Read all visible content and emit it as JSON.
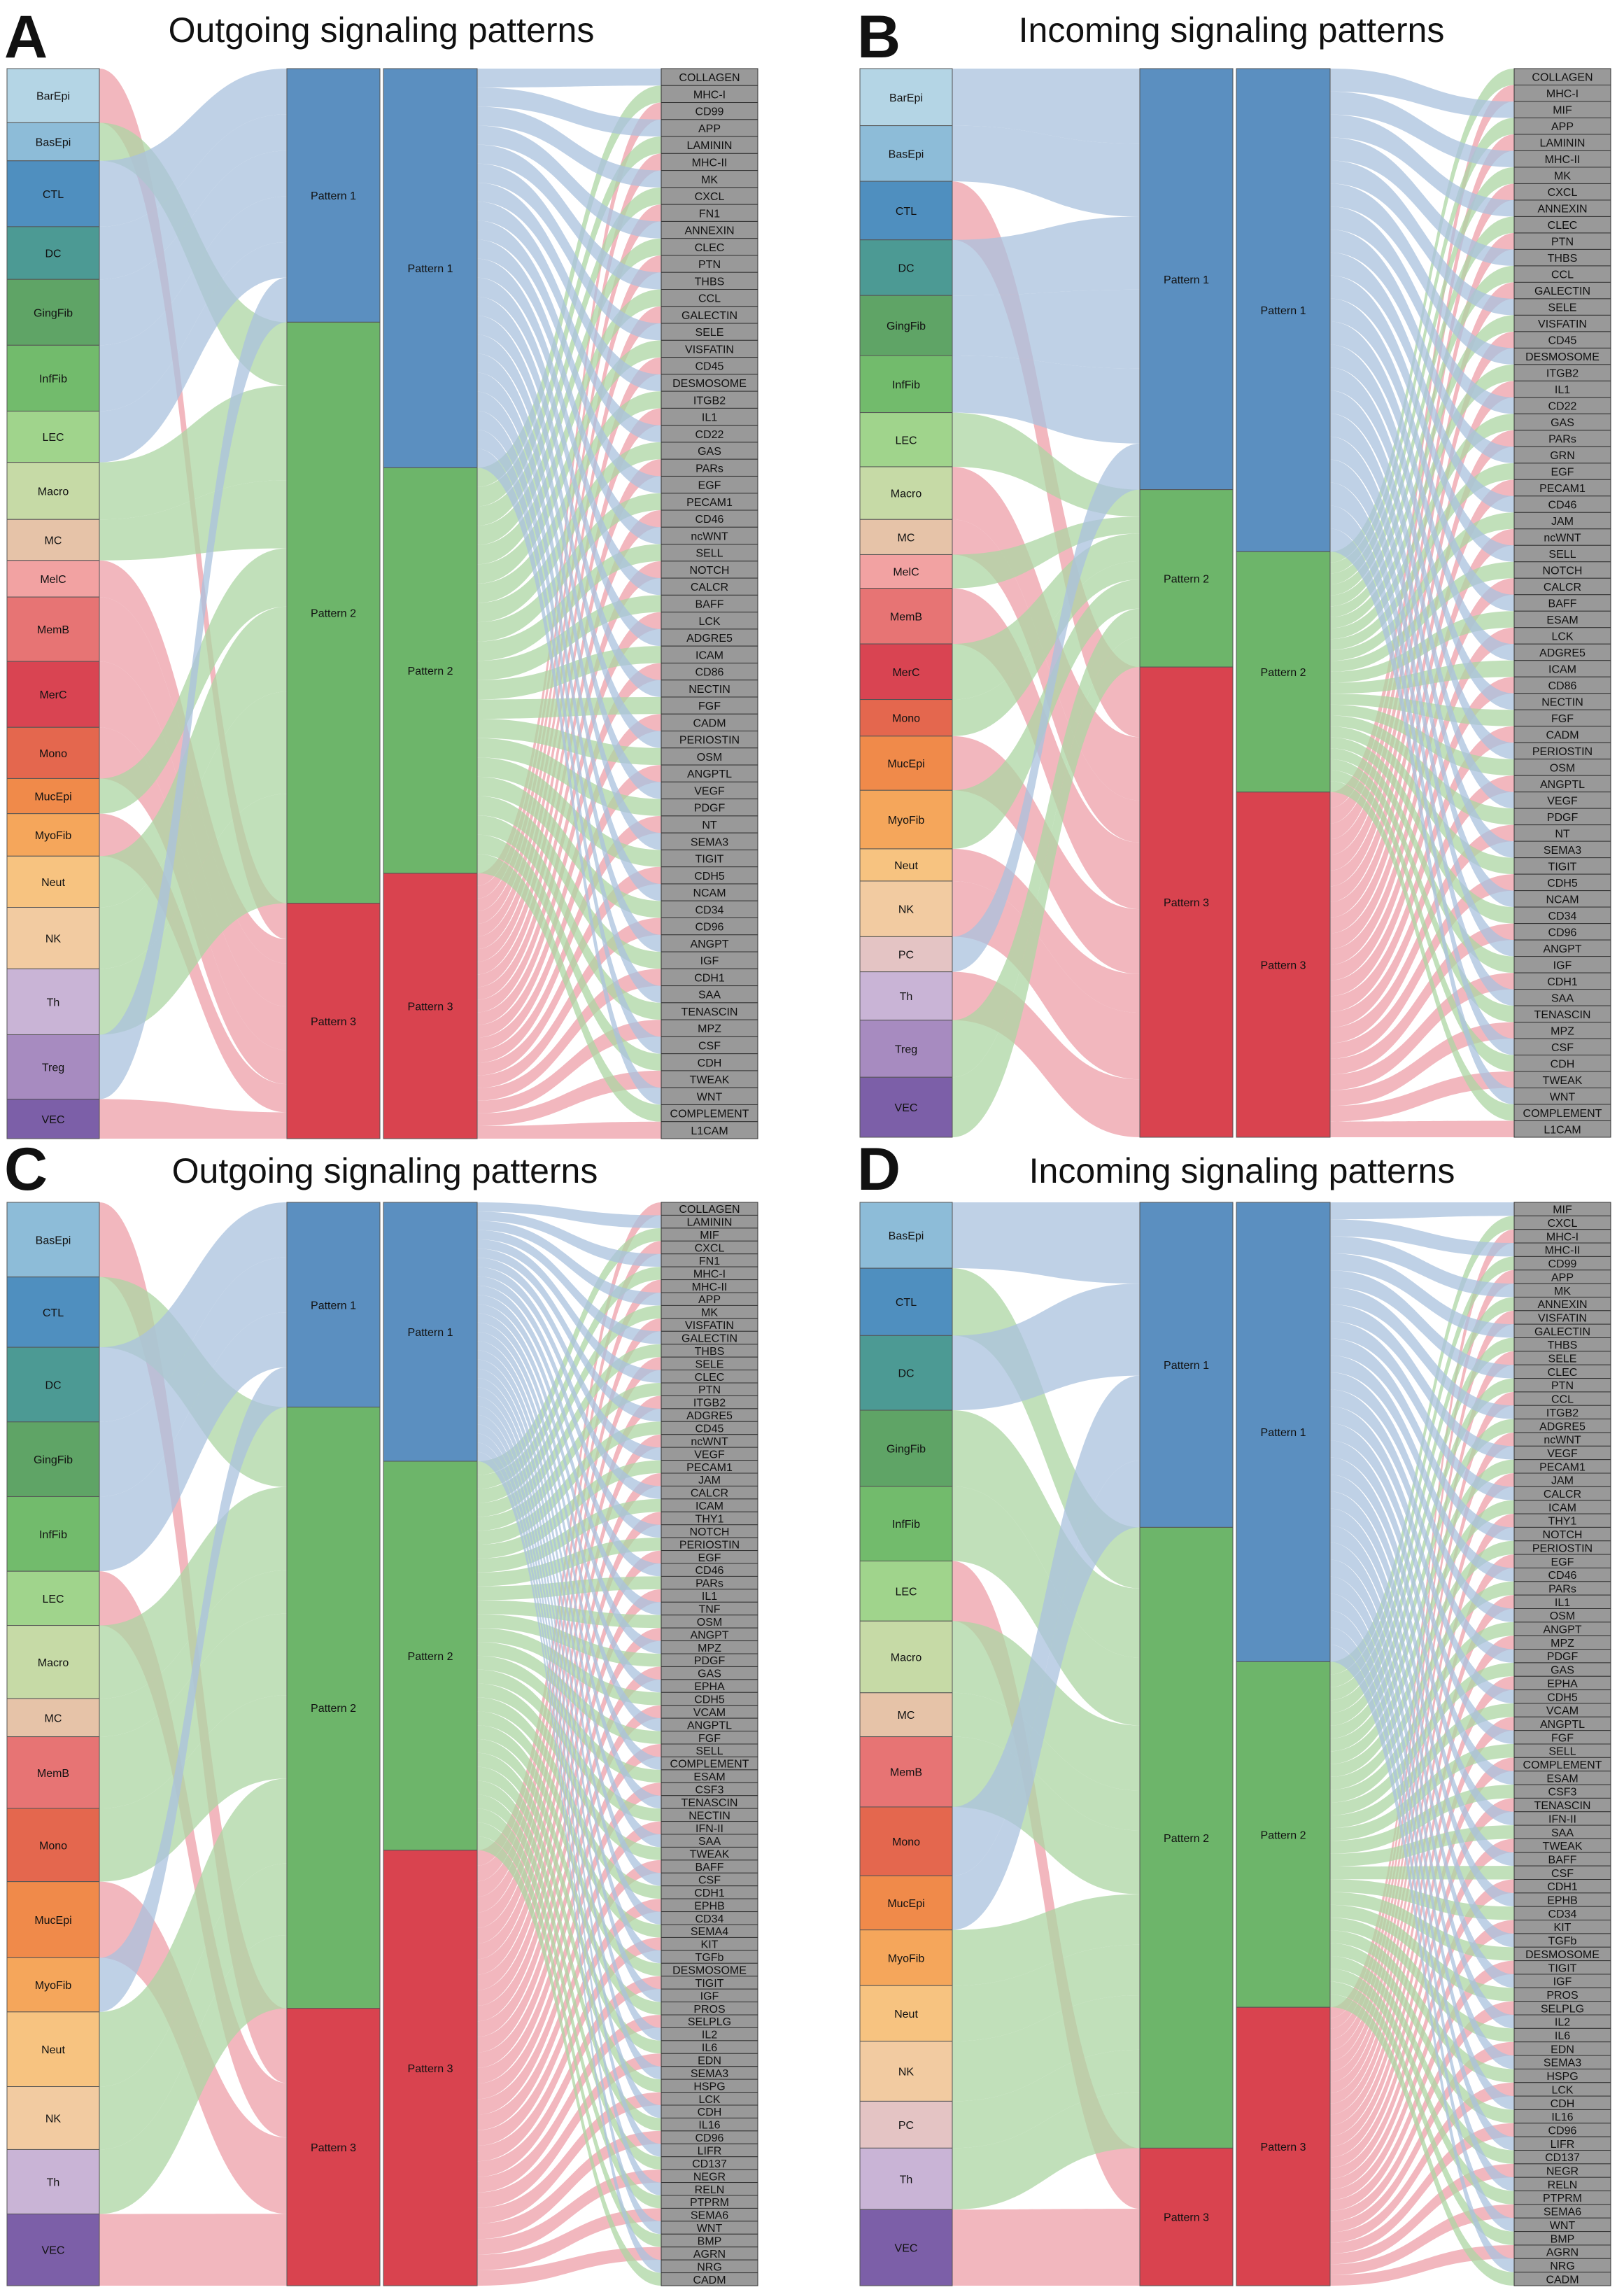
{
  "colors": {
    "pattern_fill": [
      "#5b8fc0",
      "#6db56a",
      "#d9434f"
    ],
    "pattern_flow": [
      "#a9c2dd",
      "#acd5a3",
      "#ee9fa8"
    ],
    "signal_box": "#999999",
    "cell_types": {
      "BarEpi": "#b4d5e5",
      "BasEpi": "#8dbcd8",
      "CTL": "#4f8fbf",
      "DC": "#4c9a94",
      "GingFib": "#5fa466",
      "InfFib": "#72bb6c",
      "LEC": "#a0d48c",
      "Macro": "#c6daa6",
      "MC": "#e6c3a8",
      "MelC": "#f2a2a2",
      "MemB": "#e77474",
      "MerC": "#d94452",
      "Mono": "#e4674e",
      "MucEpi": "#f08a4a",
      "MyoFib": "#f5a65b",
      "Neut": "#f7c380",
      "NK": "#f2cba1",
      "PC": "#e4c4c4",
      "Th": "#c9b4d6",
      "Treg": "#a78bc0",
      "VEC": "#7c5fa8"
    }
  },
  "panels": [
    {
      "letter": "A",
      "title": "Outgoing signaling patterns",
      "patterns": [
        "Pattern 1",
        "Pattern 2",
        "Pattern 3"
      ],
      "cell_pattern_share_pct": [
        23.7,
        54.3,
        22.0
      ],
      "signal_pattern_share_pct": [
        37.3,
        37.9,
        24.8
      ],
      "cells": [
        {
          "name": "BarEpi",
          "weight": 37,
          "pattern": 3
        },
        {
          "name": "BasEpi",
          "weight": 26,
          "pattern": 2
        },
        {
          "name": "CTL",
          "weight": 45,
          "pattern": 1
        },
        {
          "name": "DC",
          "weight": 36,
          "pattern": 1
        },
        {
          "name": "GingFib",
          "weight": 45,
          "pattern": 1
        },
        {
          "name": "InfFib",
          "weight": 45,
          "pattern": 1
        },
        {
          "name": "LEC",
          "weight": 35,
          "pattern": 1
        },
        {
          "name": "Macro",
          "weight": 39,
          "pattern": 2
        },
        {
          "name": "MC",
          "weight": 28,
          "pattern": 2
        },
        {
          "name": "MelC",
          "weight": 25,
          "pattern": 3
        },
        {
          "name": "MemB",
          "weight": 44,
          "pattern": 3
        },
        {
          "name": "MerC",
          "weight": 45,
          "pattern": 3
        },
        {
          "name": "Mono",
          "weight": 35,
          "pattern": 3
        },
        {
          "name": "MucEpi",
          "weight": 24,
          "pattern": 2
        },
        {
          "name": "MyoFib",
          "weight": 29,
          "pattern": 3
        },
        {
          "name": "Neut",
          "weight": 35,
          "pattern": 2
        },
        {
          "name": "NK",
          "weight": 42,
          "pattern": 2
        },
        {
          "name": "Th",
          "weight": 45,
          "pattern": 2
        },
        {
          "name": "Treg",
          "weight": 44,
          "pattern": 1
        },
        {
          "name": "VEC",
          "weight": 27,
          "pattern": 3
        }
      ],
      "signals": [
        "COLLAGEN",
        "MHC-I",
        "CD99",
        "APP",
        "LAMININ",
        "MHC-II",
        "MK",
        "CXCL",
        "FN1",
        "ANNEXIN",
        "CLEC",
        "PTN",
        "THBS",
        "CCL",
        "GALECTIN",
        "SELE",
        "VISFATIN",
        "CD45",
        "DESMOSOME",
        "ITGB2",
        "IL1",
        "CD22",
        "GAS",
        "PARs",
        "EGF",
        "PECAM1",
        "CD46",
        "ncWNT",
        "SELL",
        "NOTCH",
        "CALCR",
        "BAFF",
        "LCK",
        "ADGRE5",
        "ICAM",
        "CD86",
        "NECTIN",
        "FGF",
        "CADM",
        "PERIOSTIN",
        "OSM",
        "ANGPTL",
        "VEGF",
        "PDGF",
        "NT",
        "SEMA3",
        "TIGIT",
        "CDH5",
        "NCAM",
        "CD34",
        "CD96",
        "ANGPT",
        "IGF",
        "CDH1",
        "SAA",
        "TENASCIN",
        "MPZ",
        "CSF",
        "CDH",
        "TWEAK",
        "WNT",
        "COMPLEMENT",
        "L1CAM"
      ]
    },
    {
      "letter": "B",
      "title": "Incoming signaling patterns",
      "patterns": [
        "Pattern 1",
        "Pattern 2",
        "Pattern 3"
      ],
      "cell_pattern_share_pct": [
        39.4,
        16.6,
        44.0
      ],
      "signal_pattern_share_pct": [
        45.2,
        22.5,
        32.3
      ],
      "cells": [
        {
          "name": "BarEpi",
          "weight": 39,
          "pattern": 1
        },
        {
          "name": "BasEpi",
          "weight": 38,
          "pattern": 1
        },
        {
          "name": "CTL",
          "weight": 40,
          "pattern": 3
        },
        {
          "name": "DC",
          "weight": 38,
          "pattern": 1
        },
        {
          "name": "GingFib",
          "weight": 41,
          "pattern": 1
        },
        {
          "name": "InfFib",
          "weight": 39,
          "pattern": 1
        },
        {
          "name": "LEC",
          "weight": 37,
          "pattern": 2
        },
        {
          "name": "Macro",
          "weight": 36,
          "pattern": 3
        },
        {
          "name": "MC",
          "weight": 24,
          "pattern": 3
        },
        {
          "name": "MelC",
          "weight": 23,
          "pattern": 2
        },
        {
          "name": "MemB",
          "weight": 38,
          "pattern": 3
        },
        {
          "name": "MerC",
          "weight": 38,
          "pattern": 2
        },
        {
          "name": "Mono",
          "weight": 25,
          "pattern": 2
        },
        {
          "name": "MucEpi",
          "weight": 37,
          "pattern": 3
        },
        {
          "name": "MyoFib",
          "weight": 40,
          "pattern": 2
        },
        {
          "name": "Neut",
          "weight": 22,
          "pattern": 3
        },
        {
          "name": "NK",
          "weight": 38,
          "pattern": 3
        },
        {
          "name": "PC",
          "weight": 24,
          "pattern": 1
        },
        {
          "name": "Th",
          "weight": 33,
          "pattern": 3
        },
        {
          "name": "Treg",
          "weight": 39,
          "pattern": 2
        },
        {
          "name": "VEC",
          "weight": 41,
          "pattern": 2
        }
      ],
      "signals": [
        "COLLAGEN",
        "MHC-I",
        "MIF",
        "APP",
        "LAMININ",
        "MHC-II",
        "MK",
        "CXCL",
        "ANNEXIN",
        "CLEC",
        "PTN",
        "THBS",
        "CCL",
        "GALECTIN",
        "SELE",
        "VISFATIN",
        "CD45",
        "DESMOSOME",
        "ITGB2",
        "IL1",
        "CD22",
        "GAS",
        "PARs",
        "GRN",
        "EGF",
        "PECAM1",
        "CD46",
        "JAM",
        "ncWNT",
        "SELL",
        "NOTCH",
        "CALCR",
        "BAFF",
        "ESAM",
        "LCK",
        "ADGRE5",
        "ICAM",
        "CD86",
        "NECTIN",
        "FGF",
        "CADM",
        "PERIOSTIN",
        "OSM",
        "ANGPTL",
        "VEGF",
        "PDGF",
        "NT",
        "SEMA3",
        "TIGIT",
        "CDH5",
        "NCAM",
        "CD34",
        "CD96",
        "ANGPT",
        "IGF",
        "CDH1",
        "SAA",
        "TENASCIN",
        "MPZ",
        "CSF",
        "CDH",
        "TWEAK",
        "WNT",
        "COMPLEMENT",
        "L1CAM"
      ]
    },
    {
      "letter": "C",
      "title": "Outgoing signaling patterns",
      "patterns": [
        "Pattern 1",
        "Pattern 2",
        "Pattern 3"
      ],
      "cell_pattern_share_pct": [
        18.9,
        55.5,
        25.6
      ],
      "signal_pattern_share_pct": [
        23.9,
        35.9,
        40.2
      ],
      "cells": [
        {
          "name": "BasEpi",
          "weight": 51,
          "pattern": 3
        },
        {
          "name": "CTL",
          "weight": 48,
          "pattern": 2
        },
        {
          "name": "DC",
          "weight": 51,
          "pattern": 1
        },
        {
          "name": "GingFib",
          "weight": 51,
          "pattern": 1
        },
        {
          "name": "InfFib",
          "weight": 51,
          "pattern": 1
        },
        {
          "name": "LEC",
          "weight": 37,
          "pattern": 3
        },
        {
          "name": "Macro",
          "weight": 50,
          "pattern": 2
        },
        {
          "name": "MC",
          "weight": 26,
          "pattern": 2
        },
        {
          "name": "MemB",
          "weight": 49,
          "pattern": 2
        },
        {
          "name": "Mono",
          "weight": 50,
          "pattern": 2
        },
        {
          "name": "MucEpi",
          "weight": 52,
          "pattern": 3
        },
        {
          "name": "MyoFib",
          "weight": 37,
          "pattern": 1
        },
        {
          "name": "Neut",
          "weight": 51,
          "pattern": 2
        },
        {
          "name": "NK",
          "weight": 43,
          "pattern": 2
        },
        {
          "name": "Th",
          "weight": 44,
          "pattern": 2
        },
        {
          "name": "VEC",
          "weight": 49,
          "pattern": 3
        }
      ],
      "signals": [
        "COLLAGEN",
        "LAMININ",
        "MIF",
        "CXCL",
        "FN1",
        "MHC-I",
        "MHC-II",
        "APP",
        "MK",
        "VISFATIN",
        "GALECTIN",
        "THBS",
        "SELE",
        "CLEC",
        "PTN",
        "ITGB2",
        "ADGRE5",
        "CD45",
        "ncWNT",
        "VEGF",
        "PECAM1",
        "JAM",
        "CALCR",
        "ICAM",
        "THY1",
        "NOTCH",
        "PERIOSTIN",
        "EGF",
        "CD46",
        "PARs",
        "IL1",
        "TNF",
        "OSM",
        "ANGPT",
        "MPZ",
        "PDGF",
        "GAS",
        "EPHA",
        "CDH5",
        "VCAM",
        "ANGPTL",
        "FGF",
        "SELL",
        "COMPLEMENT",
        "ESAM",
        "CSF3",
        "TENASCIN",
        "NECTIN",
        "IFN-II",
        "SAA",
        "TWEAK",
        "BAFF",
        "CSF",
        "CDH1",
        "EPHB",
        "CD34",
        "SEMA4",
        "KIT",
        "TGFb",
        "DESMOSOME",
        "TIGIT",
        "IGF",
        "PROS",
        "SELPLG",
        "IL2",
        "IL6",
        "EDN",
        "SEMA3",
        "HSPG",
        "LCK",
        "CDH",
        "IL16",
        "CD96",
        "LIFR",
        "CD137",
        "NEGR",
        "RELN",
        "PTPRM",
        "SEMA6",
        "WNT",
        "BMP",
        "AGRN",
        "NRG",
        "CADM"
      ]
    },
    {
      "letter": "D",
      "title": "Incoming signaling patterns",
      "patterns": [
        "Pattern 1",
        "Pattern 2",
        "Pattern 3"
      ],
      "cell_pattern_share_pct": [
        30.0,
        57.3,
        12.7
      ],
      "signal_pattern_share_pct": [
        42.4,
        31.9,
        25.7
      ],
      "cells": [
        {
          "name": "BasEpi",
          "weight": 45,
          "pattern": 1
        },
        {
          "name": "CTL",
          "weight": 46,
          "pattern": 2
        },
        {
          "name": "DC",
          "weight": 51,
          "pattern": 1
        },
        {
          "name": "GingFib",
          "weight": 52,
          "pattern": 2
        },
        {
          "name": "InfFib",
          "weight": 51,
          "pattern": 2
        },
        {
          "name": "LEC",
          "weight": 41,
          "pattern": 3
        },
        {
          "name": "Macro",
          "weight": 49,
          "pattern": 2
        },
        {
          "name": "MC",
          "weight": 30,
          "pattern": 2
        },
        {
          "name": "MemB",
          "weight": 48,
          "pattern": 2
        },
        {
          "name": "Mono",
          "weight": 47,
          "pattern": 1
        },
        {
          "name": "MucEpi",
          "weight": 37,
          "pattern": 1
        },
        {
          "name": "MyoFib",
          "weight": 38,
          "pattern": 2
        },
        {
          "name": "Neut",
          "weight": 38,
          "pattern": 2
        },
        {
          "name": "NK",
          "weight": 41,
          "pattern": 2
        },
        {
          "name": "PC",
          "weight": 32,
          "pattern": 2
        },
        {
          "name": "Th",
          "weight": 42,
          "pattern": 2
        },
        {
          "name": "VEC",
          "weight": 52,
          "pattern": 3
        }
      ],
      "signals": [
        "MIF",
        "CXCL",
        "MHC-I",
        "MHC-II",
        "CD99",
        "APP",
        "MK",
        "ANNEXIN",
        "VISFATIN",
        "GALECTIN",
        "THBS",
        "SELE",
        "CLEC",
        "PTN",
        "CCL",
        "ITGB2",
        "ADGRE5",
        "ncWNT",
        "VEGF",
        "PECAM1",
        "JAM",
        "CALCR",
        "ICAM",
        "THY1",
        "NOTCH",
        "PERIOSTIN",
        "EGF",
        "CD46",
        "PARs",
        "IL1",
        "OSM",
        "ANGPT",
        "MPZ",
        "PDGF",
        "GAS",
        "EPHA",
        "CDH5",
        "VCAM",
        "ANGPTL",
        "FGF",
        "SELL",
        "COMPLEMENT",
        "ESAM",
        "CSF3",
        "TENASCIN",
        "IFN-II",
        "SAA",
        "TWEAK",
        "BAFF",
        "CSF",
        "CDH1",
        "EPHB",
        "CD34",
        "KIT",
        "TGFb",
        "DESMOSOME",
        "TIGIT",
        "IGF",
        "PROS",
        "SELPLG",
        "IL2",
        "IL6",
        "EDN",
        "SEMA3",
        "HSPG",
        "LCK",
        "CDH",
        "IL16",
        "CD96",
        "LIFR",
        "CD137",
        "NEGR",
        "RELN",
        "PTPRM",
        "SEMA6",
        "WNT",
        "BMP",
        "AGRN",
        "NRG",
        "CADM"
      ]
    }
  ]
}
